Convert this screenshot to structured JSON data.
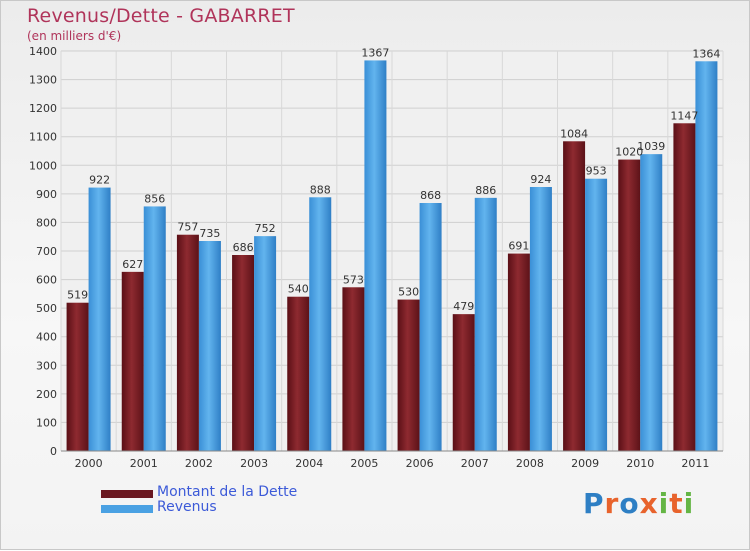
{
  "header": {
    "title": "Revenus/Dette - GABARRET",
    "subtitle": "(en milliers d'€)"
  },
  "legend": {
    "items": [
      {
        "label": "Montant de la Dette",
        "color": "#7a1f26"
      },
      {
        "label": "Revenus",
        "color": "#4aa1e3"
      }
    ]
  },
  "logo": {
    "letters": [
      "P",
      "r",
      "o",
      "x",
      "i",
      "t",
      "i"
    ],
    "colors": [
      "#2e7fc4",
      "#e8632c",
      "#2e7fc4",
      "#e8632c",
      "#64b544",
      "#e8632c",
      "#64b544"
    ]
  },
  "chart_data": {
    "type": "bar",
    "categories": [
      "2000",
      "2001",
      "2002",
      "2003",
      "2004",
      "2005",
      "2006",
      "2007",
      "2008",
      "2009",
      "2010",
      "2011"
    ],
    "series": [
      {
        "name": "Montant de la Dette",
        "color": "#7a1f26",
        "values": [
          519,
          627,
          757,
          686,
          540,
          573,
          530,
          479,
          691,
          1084,
          1020,
          1147
        ]
      },
      {
        "name": "Revenus",
        "color": "#4aa1e3",
        "values": [
          922,
          856,
          735,
          752,
          888,
          1367,
          868,
          886,
          924,
          953,
          1039,
          1364
        ]
      }
    ],
    "title": "Revenus/Dette - GABARRET",
    "ylim": [
      0,
      1400
    ],
    "yticks": [
      0,
      100,
      200,
      300,
      400,
      500,
      600,
      700,
      800,
      900,
      1000,
      1100,
      1200,
      1300,
      1400
    ],
    "grid": true,
    "legend_position": "bottom-left"
  }
}
